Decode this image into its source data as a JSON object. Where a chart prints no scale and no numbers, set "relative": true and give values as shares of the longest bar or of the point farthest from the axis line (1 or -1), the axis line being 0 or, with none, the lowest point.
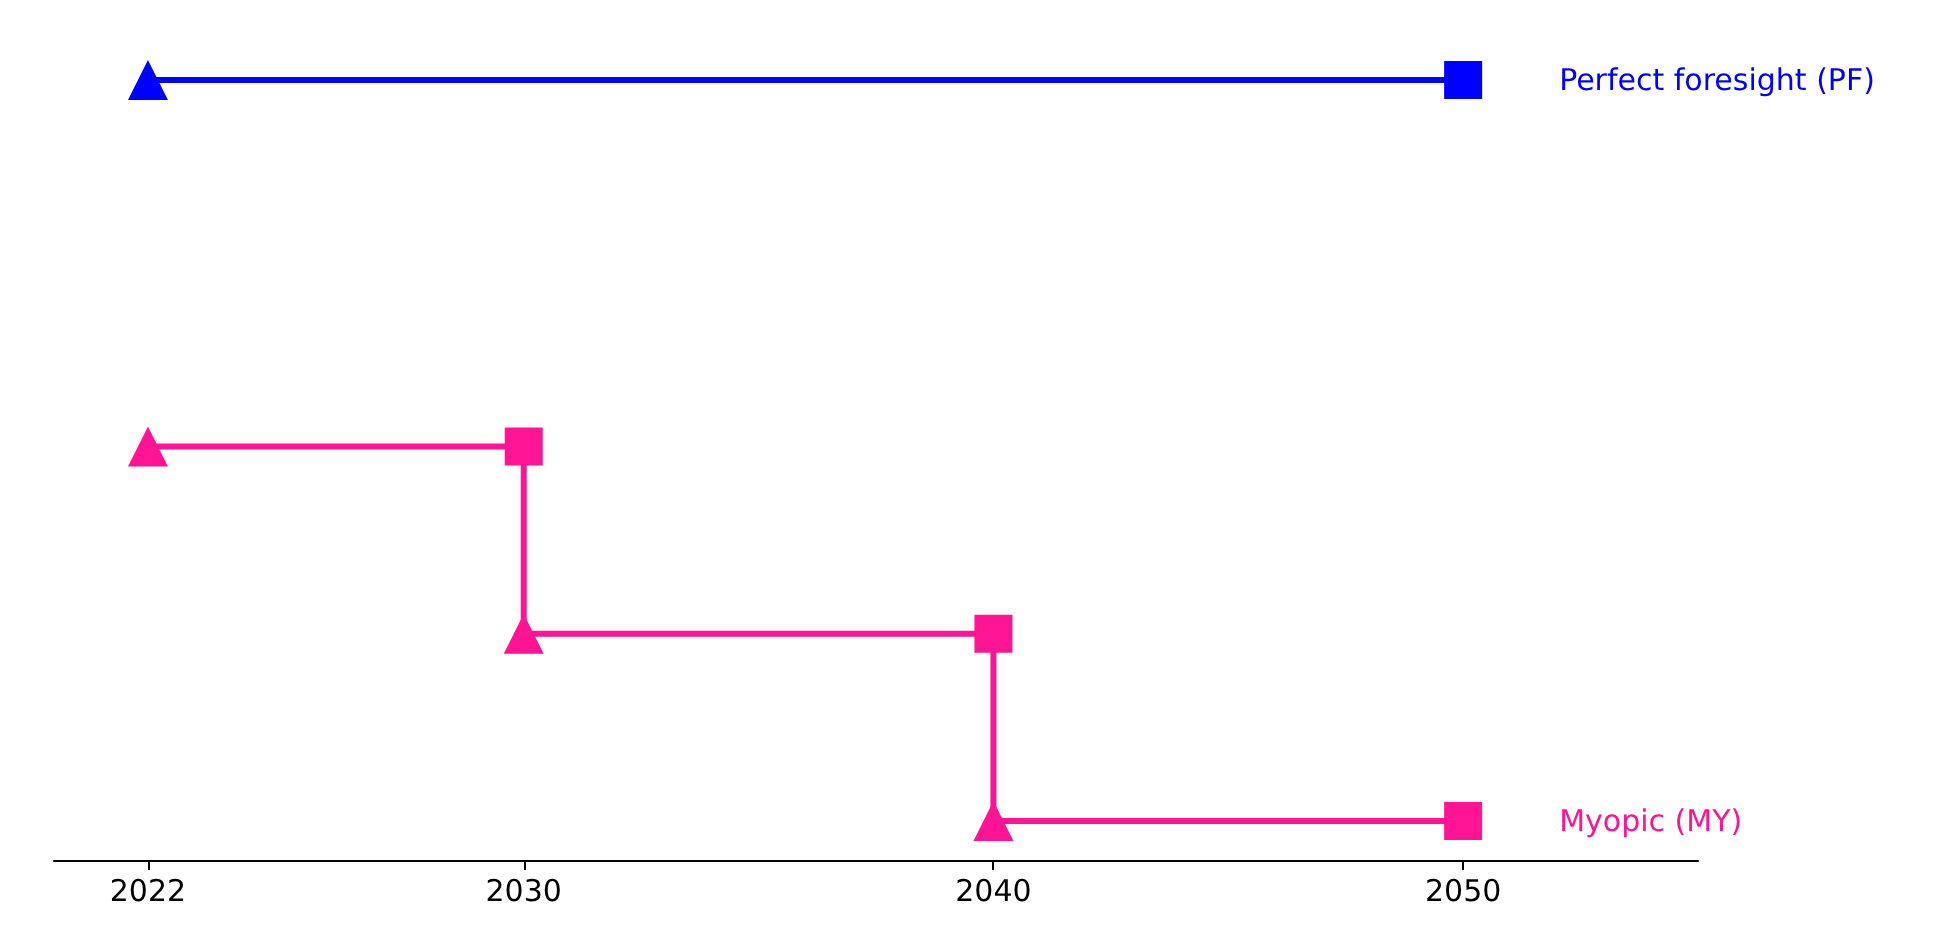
{
  "chart_data": {
    "type": "line",
    "relative": true,
    "legend": false,
    "grid": false,
    "tick_labels": "x",
    "xlim": [
      2020,
      2055
    ],
    "xticks": [
      2022,
      2030,
      2040,
      2050
    ],
    "series": [
      {
        "name": "Perfect foresight (PF)",
        "marker": "none",
        "color": "#0000ff",
        "x": [
          2022,
          2050
        ],
        "values": [
          1,
          1
        ]
      },
      {
        "name": "Myopic (MY)",
        "marker": "none",
        "color": "#ff1493",
        "x": [
          2022,
          2030,
          2030,
          2040,
          2040,
          2050
        ],
        "values": [
          0.53,
          0.53,
          0.29,
          0.29,
          0.05,
          0.05
        ]
      },
      {
        "type": "scatter",
        "marker": "triangle",
        "colors": [
          "#0000ff",
          "#ff1493",
          "#ff1493",
          "#ff1493"
        ],
        "x": [
          2022,
          2022,
          2030,
          2040
        ],
        "values": [
          1,
          0.53,
          0.29,
          0.05
        ]
      },
      {
        "type": "scatter",
        "marker": "square",
        "colors": [
          "#0000ff",
          "#ff1493",
          "#ff1493",
          "#ff1493"
        ],
        "x": [
          2050,
          2030,
          2040,
          2050
        ],
        "values": [
          1,
          0.53,
          0.29,
          0.05
        ]
      }
    ]
  }
}
